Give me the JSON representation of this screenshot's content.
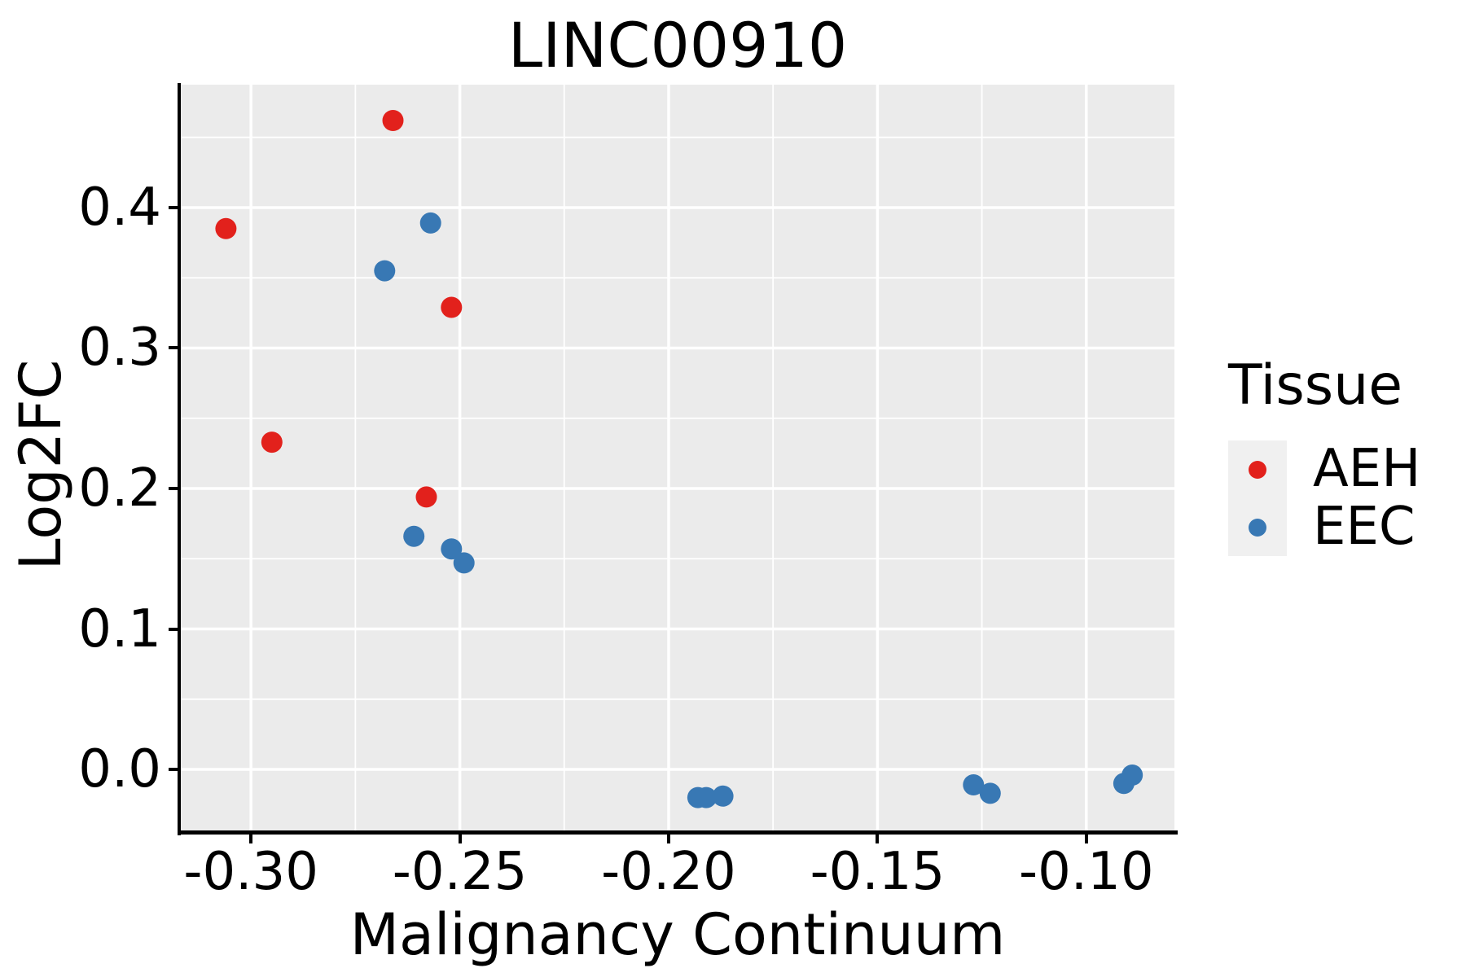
{
  "title": "LINC00910",
  "axes": {
    "x_label": "Malignancy Continuum",
    "y_label": "Log2FC"
  },
  "legend": {
    "title": "Tissue",
    "items": [
      {
        "label": "AEH",
        "color": "#E2211C"
      },
      {
        "label": "EEC",
        "color": "#3878B4"
      }
    ]
  },
  "colors": {
    "panel_background": "#EBEBEB",
    "grid": "#FFFFFF",
    "axis": "#000000",
    "aeh_red": "#E2211C",
    "eec_blue": "#3878B4"
  },
  "chart_data": {
    "type": "scatter",
    "title": "LINC00910",
    "xlabel": "Malignancy Continuum",
    "ylabel": "Log2FC",
    "xlim": [
      -0.3168,
      -0.0789
    ],
    "ylim": [
      -0.0446,
      0.4875
    ],
    "x_ticks": [
      -0.3,
      -0.25,
      -0.2,
      -0.15,
      -0.1
    ],
    "x_tick_labels": [
      "-0.30",
      "-0.25",
      "-0.20",
      "-0.15",
      "-0.10"
    ],
    "y_ticks": [
      0.0,
      0.1,
      0.2,
      0.3,
      0.4
    ],
    "y_tick_labels": [
      "0.0",
      "0.1",
      "0.2",
      "0.3",
      "0.4"
    ],
    "grid": "major+minor gridlines, white on gray panel",
    "legend_position": "right",
    "legend_title": "Tissue",
    "point_radius_px": 13,
    "series": [
      {
        "name": "AEH",
        "color": "#E2211C",
        "points": [
          [
            -0.266,
            0.462
          ],
          [
            -0.306,
            0.385
          ],
          [
            -0.252,
            0.329
          ],
          [
            -0.295,
            0.233
          ],
          [
            -0.258,
            0.194
          ]
        ]
      },
      {
        "name": "EEC",
        "color": "#3878B4",
        "points": [
          [
            -0.257,
            0.389
          ],
          [
            -0.268,
            0.355
          ],
          [
            -0.261,
            0.166
          ],
          [
            -0.252,
            0.157
          ],
          [
            -0.249,
            0.147
          ],
          [
            -0.193,
            -0.02
          ],
          [
            -0.191,
            -0.02
          ],
          [
            -0.187,
            -0.019
          ],
          [
            -0.127,
            -0.011
          ],
          [
            -0.123,
            -0.017
          ],
          [
            -0.091,
            -0.01
          ],
          [
            -0.089,
            -0.004
          ]
        ]
      }
    ]
  }
}
